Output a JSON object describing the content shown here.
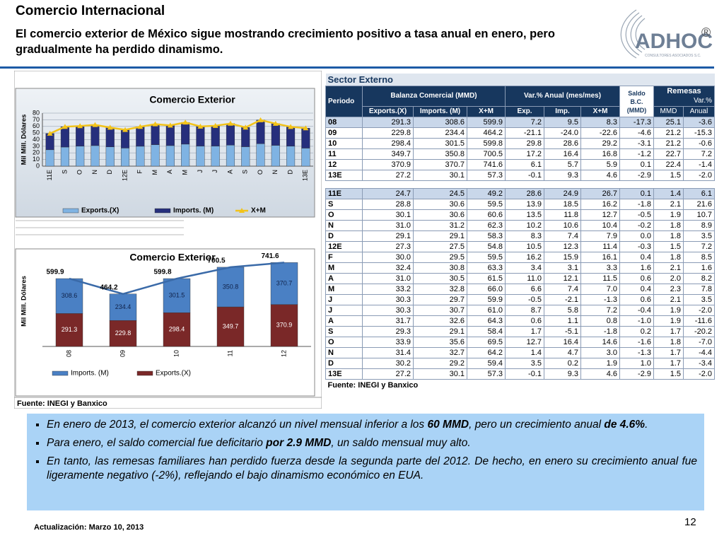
{
  "header": {
    "title": "Comercio Internacional",
    "subtitle": "El comercio exterior de México sigue mostrando crecimiento positivo a tasa anual en enero, pero gradualmente ha perdido dinamismo.",
    "logo": "ADHOC",
    "logo_mark": "®",
    "logo_tagline": "CONSULTORES ASOCIADOS S.C."
  },
  "chart_data": [
    {
      "type": "bar",
      "stacked": true,
      "title": "Comercio Exterior",
      "y_label": "Mil Mill. Dólares",
      "categories": [
        "11E",
        "S",
        "O",
        "N",
        "D",
        "12E",
        "F",
        "M",
        "A",
        "M",
        "J",
        "J",
        "A",
        "S",
        "O",
        "N",
        "D",
        "13E"
      ],
      "series": [
        {
          "name": "Exports.(X)",
          "color": "#7fb3e3",
          "values": [
            24.7,
            28.8,
            30.1,
            31.0,
            29.1,
            27.3,
            30.0,
            32.4,
            31.0,
            33.2,
            30.3,
            30.3,
            31.7,
            29.3,
            33.9,
            31.4,
            30.2,
            27.2
          ]
        },
        {
          "name": "Imports. (M)",
          "color": "#262f7c",
          "values": [
            24.5,
            30.6,
            30.6,
            31.2,
            29.1,
            27.5,
            29.5,
            30.8,
            30.5,
            32.8,
            29.7,
            30.7,
            32.6,
            29.1,
            35.6,
            32.7,
            29.2,
            30.1
          ]
        },
        {
          "name": "X+M",
          "color": "#f2c31a",
          "kind": "line",
          "values": [
            49.2,
            59.5,
            60.6,
            62.3,
            58.3,
            54.8,
            59.5,
            63.3,
            61.5,
            66.0,
            59.9,
            61.0,
            64.3,
            58.4,
            69.5,
            64.2,
            59.4,
            57.3
          ]
        }
      ],
      "ylim": [
        0,
        80
      ],
      "yticks": [
        0,
        10,
        20,
        30,
        40,
        50,
        60,
        70,
        80
      ],
      "grid": true,
      "legend": "bottom"
    },
    {
      "type": "bar",
      "stacked": true,
      "title": "Comercio Exterior",
      "y_label": "Mil Mill. Dólares",
      "categories": [
        "08",
        "09",
        "10",
        "11",
        "12"
      ],
      "series": [
        {
          "name": "Exports.(X)",
          "color": "#7a2828",
          "values": [
            291.3,
            229.8,
            298.4,
            349.7,
            370.9
          ]
        },
        {
          "name": "Imports. (M)",
          "color": "#4a80c4",
          "values": [
            308.6,
            234.4,
            301.5,
            350.8,
            370.7
          ]
        },
        {
          "color": "#3a6aa8",
          "kind": "line",
          "values": [
            599.9,
            464.2,
            599.8,
            700.5,
            741.6
          ]
        }
      ],
      "ylim": [
        0,
        800
      ],
      "data_labels": true,
      "legend": "bottom",
      "legend_reversed": true
    }
  ],
  "left_source": "Fuente: INEGI y Banxico",
  "table": {
    "title": "Sector Externo",
    "period": "Periodo",
    "balanza": "Balanza Comercial (MMD)",
    "variacion": "Var.% Anual (mes/mes)",
    "saldo": "Saldo B.C. (MMD)",
    "remesas": "Remesas",
    "remesas_var": "Var.%",
    "columns": [
      "Exports.(X)",
      "Imports. (M)",
      "X+M",
      "Exp.",
      "Imp.",
      "X+M",
      "MMD",
      "Anual"
    ],
    "rows": [
      [
        "08",
        "291.3",
        "308.6",
        "599.9",
        "7.2",
        "9.5",
        "8.3",
        "-17.3",
        "25.1",
        "-3.6"
      ],
      [
        "09",
        "229.8",
        "234.4",
        "464.2",
        "-21.1",
        "-24.0",
        "-22.6",
        "-4.6",
        "21.2",
        "-15.3"
      ],
      [
        "10",
        "298.4",
        "301.5",
        "599.8",
        "29.8",
        "28.6",
        "29.2",
        "-3.1",
        "21.2",
        "-0.6"
      ],
      [
        "11",
        "349.7",
        "350.8",
        "700.5",
        "17.2",
        "16.4",
        "16.8",
        "-1.2",
        "22.7",
        "7.2"
      ],
      [
        "12",
        "370.9",
        "370.7",
        "741.6",
        "6.1",
        "5.7",
        "5.9",
        "0.1",
        "22.4",
        "-1.4"
      ],
      [
        "13E",
        "27.2",
        "30.1",
        "57.3",
        "-0.1",
        "9.3",
        "4.6",
        "-2.9",
        "1.5",
        "-2.0"
      ]
    ],
    "monthly_rows": [
      [
        "11E",
        "24.7",
        "24.5",
        "49.2",
        "28.6",
        "24.9",
        "26.7",
        "0.1",
        "1.4",
        "6.1"
      ],
      [
        "S",
        "28.8",
        "30.6",
        "59.5",
        "13.9",
        "18.5",
        "16.2",
        "-1.8",
        "2.1",
        "21.6"
      ],
      [
        "O",
        "30.1",
        "30.6",
        "60.6",
        "13.5",
        "11.8",
        "12.7",
        "-0.5",
        "1.9",
        "10.7"
      ],
      [
        "N",
        "31.0",
        "31.2",
        "62.3",
        "10.2",
        "10.6",
        "10.4",
        "-0.2",
        "1.8",
        "8.9"
      ],
      [
        "D",
        "29.1",
        "29.1",
        "58.3",
        "8.3",
        "7.4",
        "7.9",
        "0.0",
        "1.8",
        "3.5"
      ],
      [
        "12E",
        "27.3",
        "27.5",
        "54.8",
        "10.5",
        "12.3",
        "11.4",
        "-0.3",
        "1.5",
        "7.2"
      ],
      [
        "F",
        "30.0",
        "29.5",
        "59.5",
        "16.2",
        "15.9",
        "16.1",
        "0.4",
        "1.8",
        "8.5"
      ],
      [
        "M",
        "32.4",
        "30.8",
        "63.3",
        "3.4",
        "3.1",
        "3.3",
        "1.6",
        "2.1",
        "1.6"
      ],
      [
        "A",
        "31.0",
        "30.5",
        "61.5",
        "11.0",
        "12.1",
        "11.5",
        "0.6",
        "2.0",
        "8.2"
      ],
      [
        "M",
        "33.2",
        "32.8",
        "66.0",
        "6.6",
        "7.4",
        "7.0",
        "0.4",
        "2.3",
        "7.8"
      ],
      [
        "J",
        "30.3",
        "29.7",
        "59.9",
        "-0.5",
        "-2.1",
        "-1.3",
        "0.6",
        "2.1",
        "3.5"
      ],
      [
        "J",
        "30.3",
        "30.7",
        "61.0",
        "8.7",
        "5.8",
        "7.2",
        "-0.4",
        "1.9",
        "-2.0"
      ],
      [
        "A",
        "31.7",
        "32.6",
        "64.3",
        "0.6",
        "1.1",
        "0.8",
        "-1.0",
        "1.9",
        "-11.6"
      ],
      [
        "S",
        "29.3",
        "29.1",
        "58.4",
        "1.7",
        "-5.1",
        "-1.8",
        "0.2",
        "1.7",
        "-20.2"
      ],
      [
        "O",
        "33.9",
        "35.6",
        "69.5",
        "12.7",
        "16.4",
        "14.6",
        "-1.6",
        "1.8",
        "-7.0"
      ],
      [
        "N",
        "31.4",
        "32.7",
        "64.2",
        "1.4",
        "4.7",
        "3.0",
        "-1.3",
        "1.7",
        "-4.4"
      ],
      [
        "D",
        "30.2",
        "29.2",
        "59.4",
        "3.5",
        "0.2",
        "1.9",
        "1.0",
        "1.7",
        "-3.4"
      ],
      [
        "13E",
        "27.2",
        "30.1",
        "57.3",
        "-0.1",
        "9.3",
        "4.6",
        "-2.9",
        "1.5",
        "-2.0"
      ]
    ],
    "source": "Fuente: INEGI y Banxico"
  },
  "bullets": [
    [
      {
        "text": "En enero de 2013, el comercio exterior alcanzó un nivel mensual inferior a los "
      },
      {
        "text": "60 MMD",
        "bold": true
      },
      {
        "text": ", pero un crecimiento anual "
      },
      {
        "text": "de 4.6%",
        "bold": true
      },
      {
        "text": "."
      }
    ],
    [
      {
        "text": "Para enero, el saldo comercial  fue deficitario "
      },
      {
        "text": "por 2.9 MMD",
        "bold": true
      },
      {
        "text": ", un saldo mensual muy alto."
      }
    ],
    [
      {
        "text": "En tanto, las remesas familiares han perdido fuerza desde la segunda parte del 2012. De hecho, en enero su crecimiento anual fue ligeramente negativo (-2%), reflejando el bajo dinamismo económico en EUA."
      }
    ]
  ],
  "footer": {
    "update": "Actualización:  Marzo 10, 2013",
    "page": "12"
  }
}
